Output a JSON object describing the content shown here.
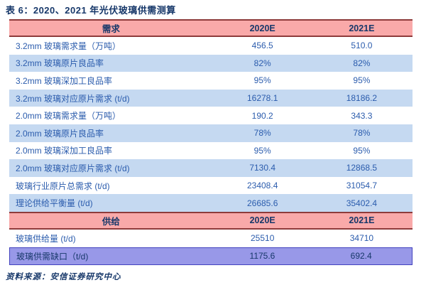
{
  "title": "表 6：2020、2021 年光伏玻璃供需测算",
  "source": "资料来源：安信证券研究中心",
  "colors": {
    "header_bg": "#F9A9A9",
    "header_border": "#8E3B3B",
    "alt_row_bg": "#C5D9F1",
    "gap_row_bg": "#9898E8",
    "gap_row_border": "#4343BE",
    "text_navy": "#17386A",
    "text_blue": "#2B5CAD",
    "page_bg": "#FFFFFF"
  },
  "table": {
    "demand_header": {
      "label": "需求",
      "y2020": "2020E",
      "y2021": "2021E"
    },
    "supply_header": {
      "label": "供给",
      "y2020": "2020E",
      "y2021": "2021E"
    },
    "rows": [
      {
        "label": "3.2mm 玻璃需求量（万吨）",
        "y2020": "456.5",
        "y2021": "510.0"
      },
      {
        "label": "3.2mm 玻璃原片良品率",
        "y2020": "82%",
        "y2021": "82%"
      },
      {
        "label": "3.2mm 玻璃深加工良品率",
        "y2020": "95%",
        "y2021": "95%"
      },
      {
        "label": "3.2mm 玻璃对应原片需求 (t/d)",
        "y2020": "16278.1",
        "y2021": "18186.2"
      },
      {
        "label": "2.0mm 玻璃需求量（万吨）",
        "y2020": "190.2",
        "y2021": "343.3"
      },
      {
        "label": "2.0mm 玻璃原片良品率",
        "y2020": "78%",
        "y2021": "78%"
      },
      {
        "label": "2.0mm 玻璃深加工良品率",
        "y2020": "95%",
        "y2021": "95%"
      },
      {
        "label": "2.0mm 玻璃对应原片需求 (t/d)",
        "y2020": "7130.4",
        "y2021": "12868.5"
      },
      {
        "label": "玻璃行业原片总需求 (t/d)",
        "y2020": "23408.4",
        "y2021": "31054.7"
      },
      {
        "label": "理论供给平衡量 (t/d)",
        "y2020": "26685.6",
        "y2021": "35402.4"
      },
      {
        "label": "玻璃供给量 (t/d)",
        "y2020": "25510",
        "y2021": "34710"
      },
      {
        "label": "玻璃供需缺口（t/d)",
        "y2020": "1175.6",
        "y2021": "692.4"
      }
    ]
  }
}
